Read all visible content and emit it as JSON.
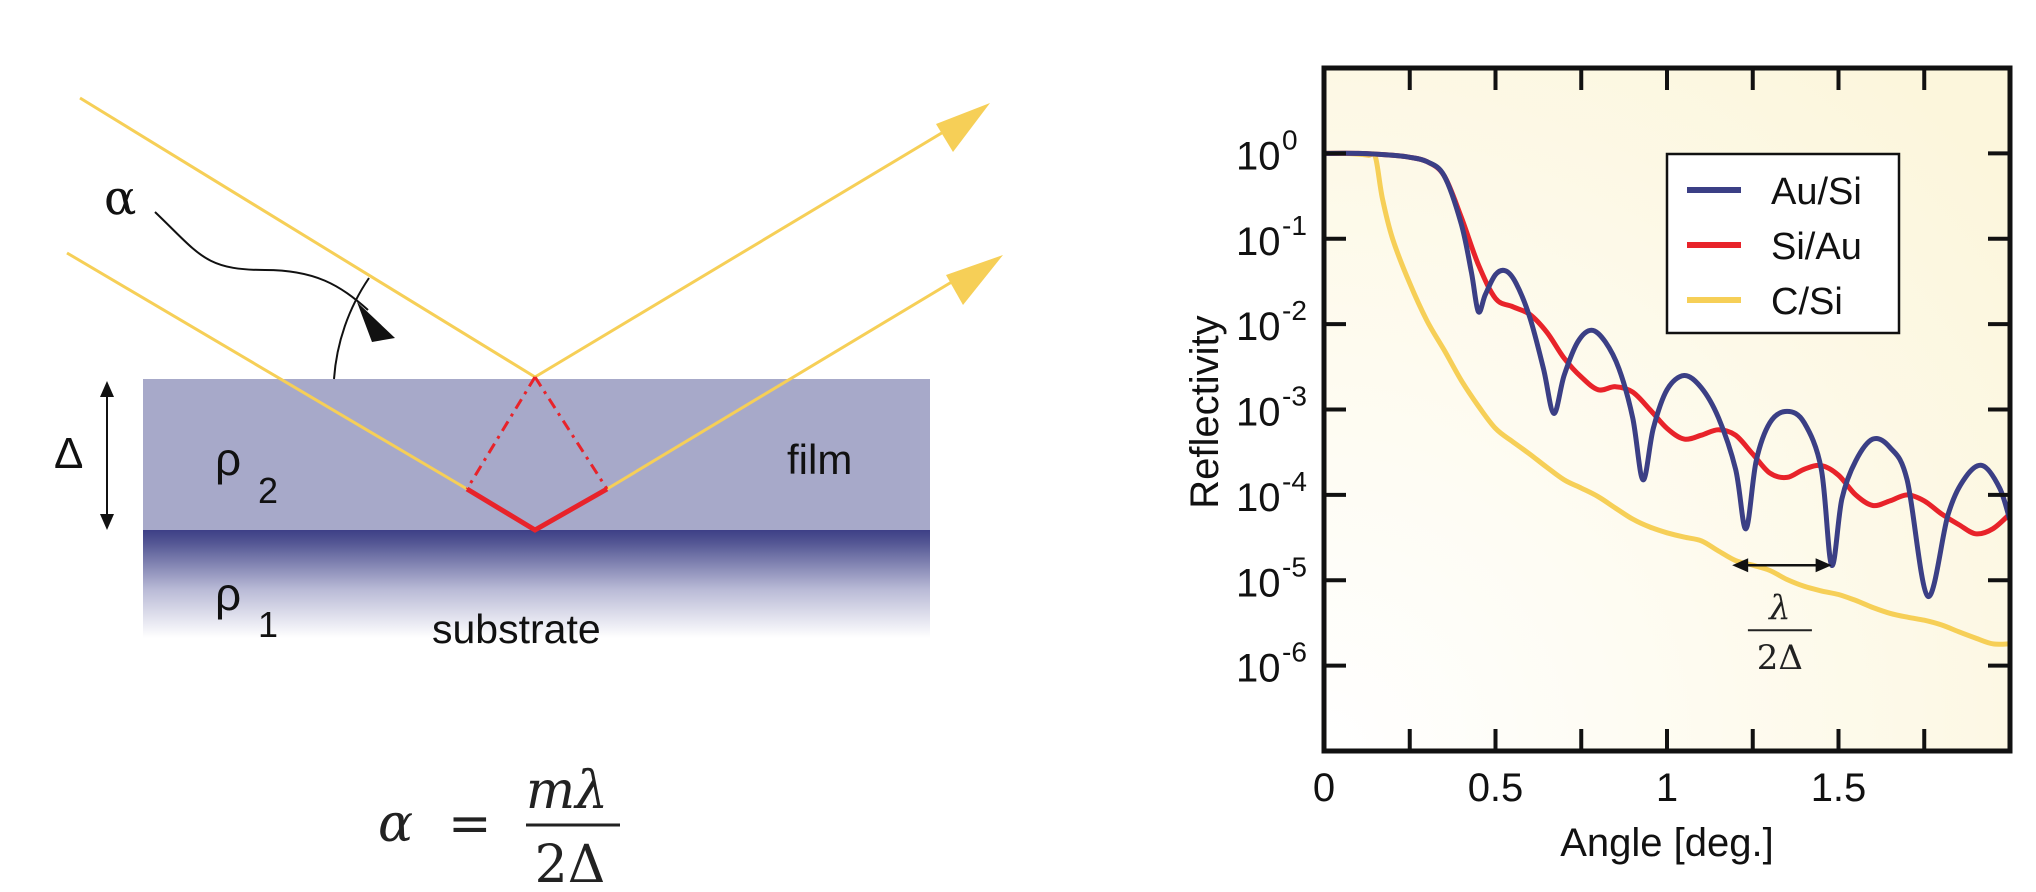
{
  "diagram": {
    "alpha_label": "α",
    "delta_label": "Δ",
    "rho2_letter": "ρ",
    "rho2_sub": "2",
    "rho1_letter": "ρ",
    "rho1_sub": "1",
    "film_label": "film",
    "substrate_label": "substrate",
    "formula": {
      "lhs": "α",
      "equals": "=",
      "numerator": "mλ",
      "denominator": "2Δ"
    },
    "colors": {
      "beam": "#f6cf57",
      "path_red": "#e8232a",
      "film_fill": "#a7a9c9",
      "interface": "#3d3f86"
    }
  },
  "chart_data": {
    "type": "line",
    "xlabel": "Angle [deg.]",
    "ylabel": "Reflectivity",
    "xlim": [
      0,
      2.0
    ],
    "ylim": [
      1e-07,
      10
    ],
    "yscale": "log",
    "x_ticks": [
      "0",
      "0.5",
      "1",
      "1.5"
    ],
    "x_tick_values": [
      0,
      0.5,
      1,
      1.5
    ],
    "y_ticks": [
      {
        "base": "10",
        "exp": "0",
        "value": 1
      },
      {
        "base": "10",
        "exp": "-1",
        "value": 0.1
      },
      {
        "base": "10",
        "exp": "-2",
        "value": 0.01
      },
      {
        "base": "10",
        "exp": "-3",
        "value": 0.001
      },
      {
        "base": "10",
        "exp": "-4",
        "value": 0.0001
      },
      {
        "base": "10",
        "exp": "-5",
        "value": 1e-05
      },
      {
        "base": "10",
        "exp": "-6",
        "value": 1e-06
      }
    ],
    "legend_position": "top-right",
    "annotation": {
      "numerator": "λ",
      "denominator": "2Δ",
      "x_start": 1.19,
      "x_end": 1.48,
      "y": 1.5e-05
    },
    "series": [
      {
        "name": "Au/Si",
        "color": "#3b3f85",
        "x": [
          0,
          0.1,
          0.2,
          0.25,
          0.3,
          0.35,
          0.4,
          0.43,
          0.45,
          0.47,
          0.5,
          0.53,
          0.56,
          0.6,
          0.64,
          0.67,
          0.7,
          0.74,
          0.78,
          0.82,
          0.86,
          0.9,
          0.93,
          0.96,
          1.0,
          1.05,
          1.1,
          1.15,
          1.2,
          1.23,
          1.26,
          1.3,
          1.35,
          1.4,
          1.45,
          1.48,
          1.51,
          1.55,
          1.6,
          1.65,
          1.7,
          1.76,
          1.82,
          1.87,
          1.92,
          1.97,
          2.0
        ],
        "y": [
          1.0,
          1.0,
          0.95,
          0.9,
          0.8,
          0.55,
          0.15,
          0.04,
          0.014,
          0.022,
          0.038,
          0.042,
          0.03,
          0.012,
          0.003,
          0.0009,
          0.0025,
          0.0062,
          0.0085,
          0.0062,
          0.003,
          0.0008,
          0.00015,
          0.0006,
          0.0017,
          0.0025,
          0.0018,
          0.0008,
          0.0002,
          4e-05,
          0.00025,
          0.0007,
          0.00095,
          0.0007,
          0.0002,
          1.5e-05,
          9e-05,
          0.00025,
          0.00045,
          0.00036,
          0.00015,
          6.5e-06,
          6e-05,
          0.00016,
          0.00022,
          0.00012,
          5e-05
        ]
      },
      {
        "name": "Si/Au",
        "color": "#e8232a",
        "x": [
          0,
          0.1,
          0.2,
          0.25,
          0.3,
          0.35,
          0.4,
          0.45,
          0.5,
          0.55,
          0.6,
          0.65,
          0.7,
          0.75,
          0.8,
          0.85,
          0.9,
          0.95,
          1.0,
          1.05,
          1.1,
          1.15,
          1.2,
          1.25,
          1.3,
          1.35,
          1.4,
          1.45,
          1.5,
          1.55,
          1.6,
          1.65,
          1.7,
          1.75,
          1.8,
          1.85,
          1.9,
          1.95,
          2.0
        ],
        "y": [
          1.0,
          1.0,
          0.95,
          0.9,
          0.8,
          0.55,
          0.18,
          0.05,
          0.02,
          0.016,
          0.013,
          0.008,
          0.004,
          0.0024,
          0.0017,
          0.00185,
          0.0016,
          0.001,
          0.0006,
          0.00045,
          0.0005,
          0.00058,
          0.0005,
          0.0003,
          0.00018,
          0.00016,
          0.0002,
          0.00022,
          0.00017,
          0.0001,
          7.5e-05,
          8.5e-05,
          0.0001,
          8.5e-05,
          6e-05,
          4.5e-05,
          3.5e-05,
          4e-05,
          6e-05
        ]
      },
      {
        "name": "C/Si",
        "color": "#f6cf57",
        "x": [
          0,
          0.05,
          0.1,
          0.13,
          0.15,
          0.17,
          0.2,
          0.25,
          0.3,
          0.35,
          0.4,
          0.45,
          0.5,
          0.55,
          0.6,
          0.65,
          0.7,
          0.75,
          0.8,
          0.85,
          0.9,
          0.95,
          1.0,
          1.05,
          1.1,
          1.15,
          1.2,
          1.25,
          1.3,
          1.35,
          1.4,
          1.45,
          1.5,
          1.55,
          1.6,
          1.65,
          1.7,
          1.75,
          1.8,
          1.85,
          1.9,
          1.95,
          2.0
        ],
        "y": [
          1.0,
          1.0,
          0.98,
          0.95,
          0.9,
          0.3,
          0.1,
          0.03,
          0.011,
          0.005,
          0.0022,
          0.0011,
          0.0006,
          0.00042,
          0.0003,
          0.00021,
          0.00015,
          0.00012,
          9.5e-05,
          7e-05,
          5.2e-05,
          4.2e-05,
          3.6e-05,
          3.2e-05,
          2.9e-05,
          2.2e-05,
          1.7e-05,
          1.5e-05,
          1.3e-05,
          1.02e-05,
          8.5e-06,
          7.5e-06,
          6.8e-06,
          5.8e-06,
          4.8e-06,
          4.1e-06,
          3.7e-06,
          3.4e-06,
          3e-06,
          2.5e-06,
          2.1e-06,
          1.8e-06,
          1.8e-06
        ]
      }
    ]
  }
}
